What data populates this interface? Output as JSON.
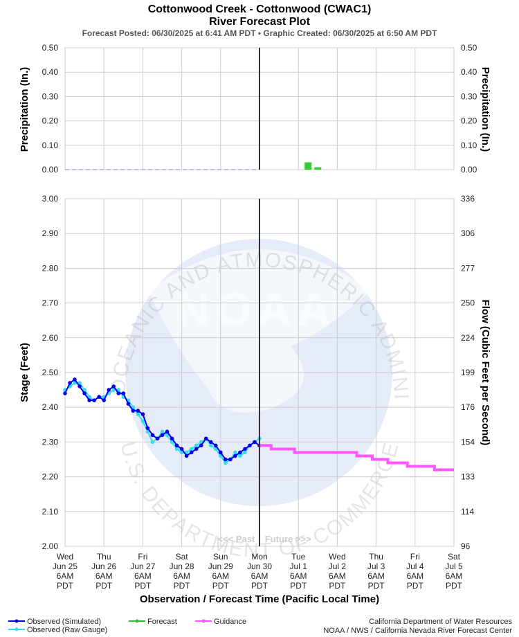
{
  "chart_data": {
    "type": "line",
    "title": "Cottonwood Creek - Cottonwood (CWAC1)",
    "subtitle": "River Forecast Plot",
    "posted": "Forecast Posted: 06/30/2025 at 6:41 AM PDT  •  Graphic Created: 06/30/2025 at 6:50 AM PDT",
    "watermark_text": "NATIONAL OCEANIC AND ATMOSPHERIC ADMINISTRATION",
    "watermark_bottom": "U.S. DEPARTMENT OF COMMERCE",
    "watermark_logo": "NOAA",
    "past_future": "<<< Past    Future >>>",
    "xlabel": "Observation / Forecast Time (Pacific Local Time)",
    "x_ticks": [
      [
        "Wed",
        "Jun 25",
        "6AM",
        "PDT"
      ],
      [
        "Thu",
        "Jun 26",
        "6AM",
        "PDT"
      ],
      [
        "Fri",
        "Jun 27",
        "6AM",
        "PDT"
      ],
      [
        "Sat",
        "Jun 28",
        "6AM",
        "PDT"
      ],
      [
        "Sun",
        "Jun 29",
        "6AM",
        "PDT"
      ],
      [
        "Mon",
        "Jun 30",
        "6AM",
        "PDT"
      ],
      [
        "Tue",
        "Jul 1",
        "6AM",
        "PDT"
      ],
      [
        "Wed",
        "Jul 2",
        "6AM",
        "PDT"
      ],
      [
        "Thu",
        "Jul 3",
        "6AM",
        "PDT"
      ],
      [
        "Fri",
        "Jul 4",
        "6AM",
        "PDT"
      ],
      [
        "Sat",
        "Jul 5",
        "6AM",
        "PDT"
      ]
    ],
    "x_range_days": [
      0,
      10
    ],
    "now_day": 5,
    "precip": {
      "ylabel_left": "Precipitation (In.)",
      "ylabel_right": "Precipitation (In.)",
      "ylim": [
        0,
        0.5
      ],
      "ticks": [
        "0.00",
        "0.10",
        "0.20",
        "0.30",
        "0.40",
        "0.50"
      ],
      "observed_value": 0.0,
      "forecast_bars": [
        {
          "day": 6.25,
          "value": 0.03
        },
        {
          "day": 6.5,
          "value": 0.01
        }
      ],
      "color_forecast": "#33cc33",
      "color_observed": "#aaaaee"
    },
    "stage": {
      "ylabel_left": "Stage (Feet)",
      "ylabel_right": "Flow (Cubic Feet per Second)",
      "ylim": [
        2.0,
        3.0
      ],
      "ticks_left": [
        "2.00",
        "2.10",
        "2.20",
        "2.30",
        "2.40",
        "2.50",
        "2.60",
        "2.70",
        "2.80",
        "2.90",
        "3.00"
      ],
      "ticks_right": [
        "96",
        "114",
        "133",
        "154",
        "176",
        "199",
        "224",
        "250",
        "277",
        "306",
        "336"
      ],
      "observed_simulated": {
        "name": "Observed (Simulated)",
        "color": "#0000ee",
        "x": [
          0,
          0.125,
          0.25,
          0.375,
          0.5,
          0.625,
          0.75,
          0.875,
          1,
          1.125,
          1.25,
          1.375,
          1.5,
          1.625,
          1.75,
          1.875,
          2,
          2.125,
          2.25,
          2.375,
          2.5,
          2.625,
          2.75,
          2.875,
          3,
          3.125,
          3.25,
          3.375,
          3.5,
          3.625,
          3.75,
          3.875,
          4,
          4.125,
          4.25,
          4.375,
          4.5,
          4.625,
          4.75,
          4.875,
          5
        ],
        "y": [
          2.44,
          2.47,
          2.48,
          2.46,
          2.44,
          2.42,
          2.42,
          2.43,
          2.42,
          2.45,
          2.46,
          2.44,
          2.44,
          2.41,
          2.39,
          2.39,
          2.38,
          2.34,
          2.32,
          2.31,
          2.32,
          2.33,
          2.31,
          2.29,
          2.28,
          2.26,
          2.27,
          2.28,
          2.29,
          2.31,
          2.3,
          2.29,
          2.27,
          2.25,
          2.25,
          2.26,
          2.27,
          2.28,
          2.29,
          2.3,
          2.29
        ]
      },
      "observed_raw": {
        "name": "Observed (Raw Gauge)",
        "color": "#33ddee",
        "x": [
          0,
          0.125,
          0.25,
          0.375,
          0.5,
          0.625,
          0.75,
          0.875,
          1,
          1.125,
          1.25,
          1.375,
          1.5,
          1.625,
          1.75,
          1.875,
          2,
          2.125,
          2.25,
          2.375,
          2.5,
          2.625,
          2.75,
          2.875,
          3,
          3.125,
          3.25,
          3.375,
          3.5,
          3.625,
          3.75,
          3.875,
          4,
          4.125,
          4.25,
          4.375,
          4.5,
          4.625,
          4.75,
          4.875,
          5
        ],
        "y": [
          2.45,
          2.46,
          2.47,
          2.47,
          2.45,
          2.43,
          2.42,
          2.43,
          2.43,
          2.44,
          2.45,
          2.45,
          2.43,
          2.42,
          2.4,
          2.38,
          2.36,
          2.33,
          2.3,
          2.31,
          2.33,
          2.32,
          2.3,
          2.28,
          2.27,
          2.27,
          2.28,
          2.29,
          2.3,
          2.31,
          2.29,
          2.28,
          2.26,
          2.24,
          2.25,
          2.27,
          2.26,
          2.27,
          2.29,
          2.3,
          2.31
        ]
      },
      "forecast": {
        "name": "Forecast",
        "color": "#33bb33",
        "x": [],
        "y": []
      },
      "guidance": {
        "name": "Guidance",
        "color": "#ff55ff",
        "steps": [
          [
            5.0,
            2.29
          ],
          [
            5.3,
            2.28
          ],
          [
            5.9,
            2.27
          ],
          [
            7.5,
            2.26
          ],
          [
            7.9,
            2.25
          ],
          [
            8.3,
            2.24
          ],
          [
            8.8,
            2.23
          ],
          [
            9.5,
            2.22
          ],
          [
            10.0,
            2.22
          ]
        ]
      }
    },
    "legend": [
      "Observed (Simulated)",
      "Observed (Raw Gauge)",
      "Forecast",
      "Guidance"
    ],
    "credits": [
      "California Department of Water Resources",
      "NOAA / NWS / California Nevada River Forecast Center"
    ]
  }
}
